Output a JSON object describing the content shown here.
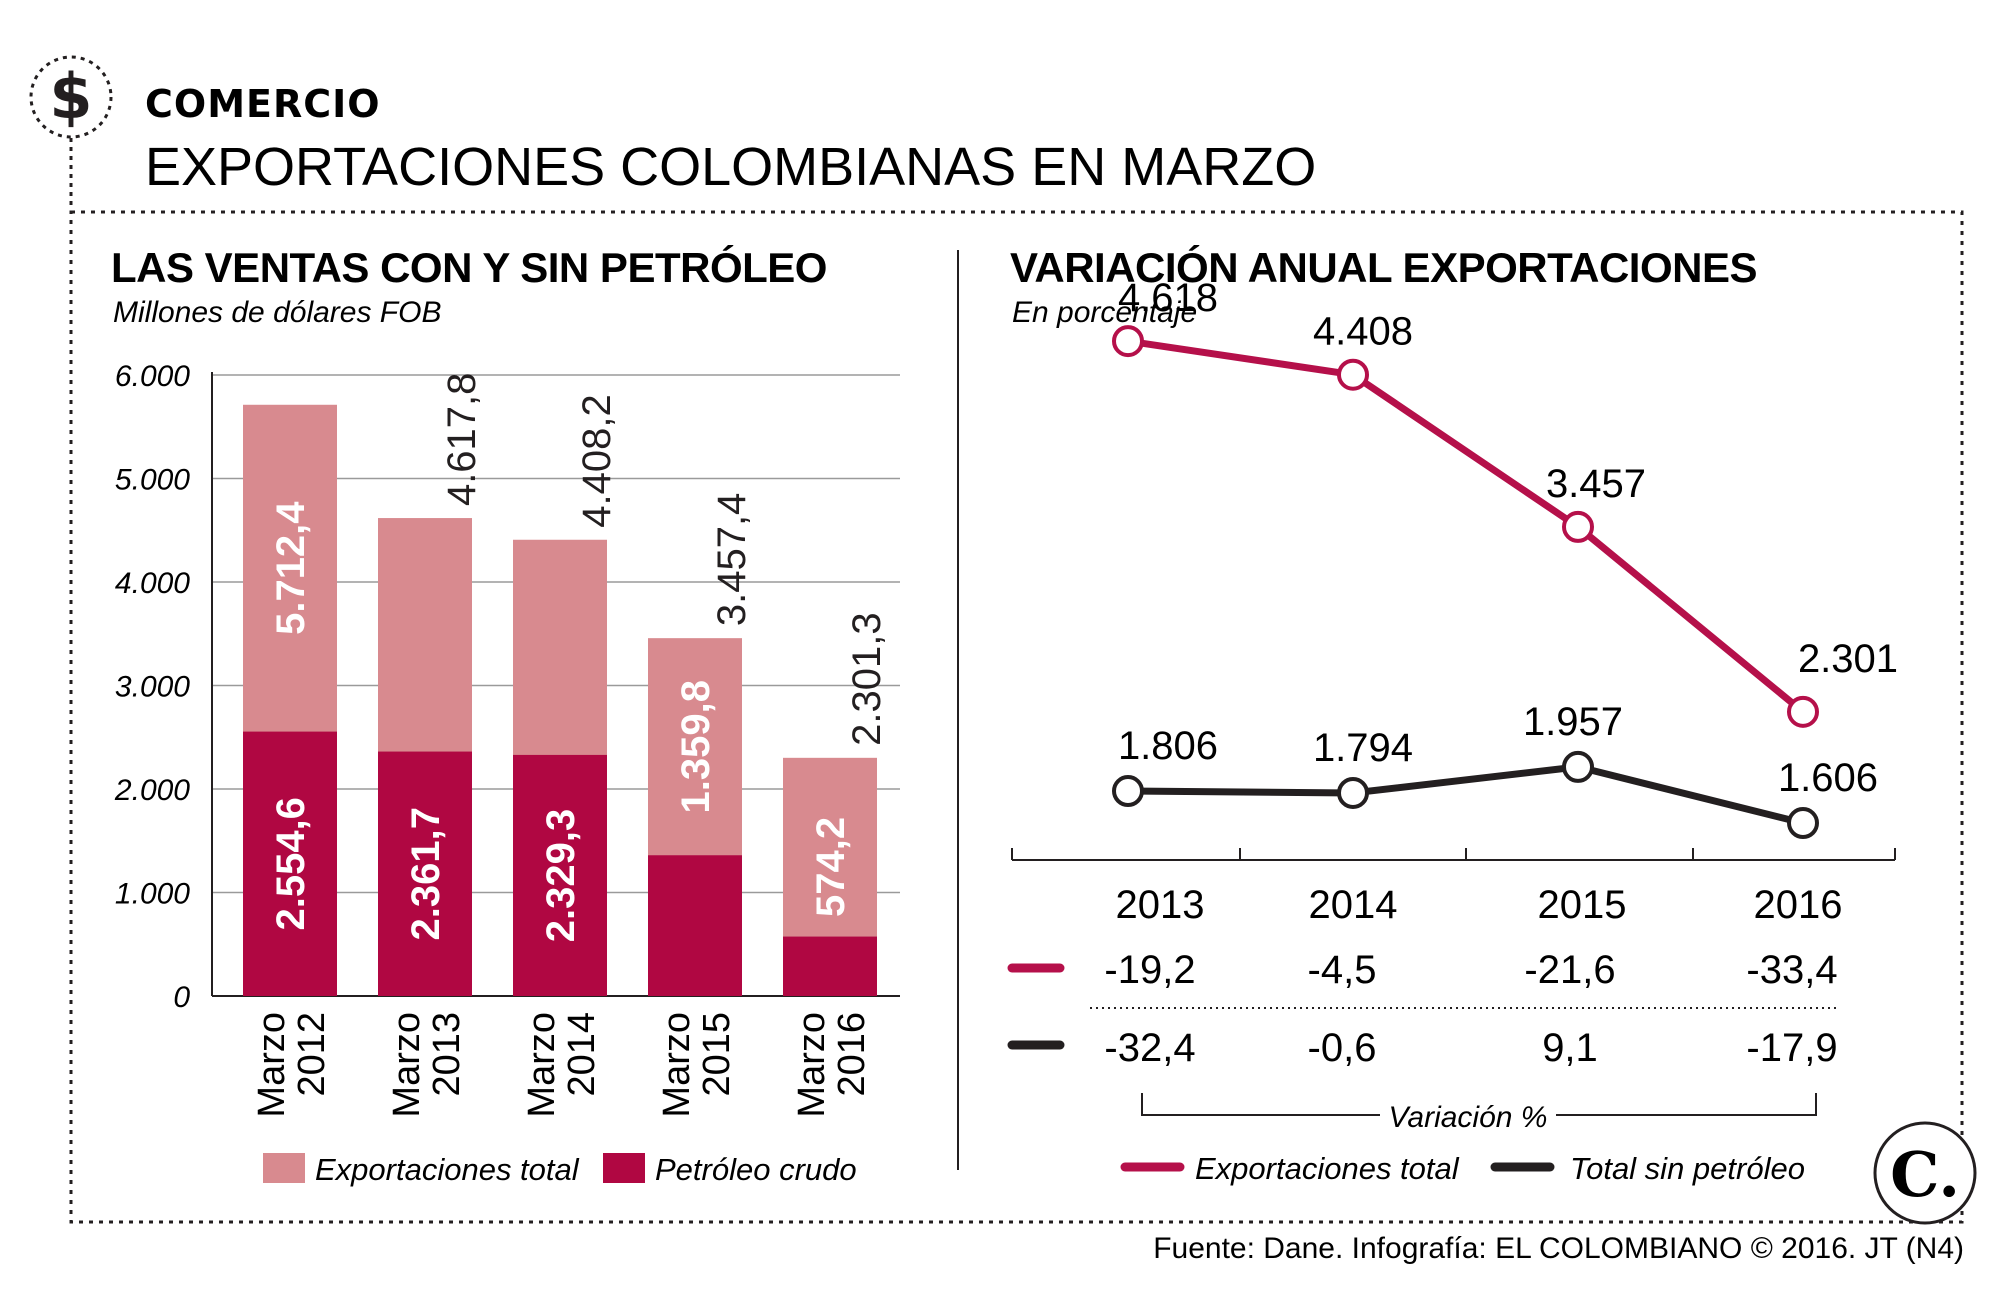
{
  "header": {
    "section": "COMERCIO",
    "title": "EXPORTACIONES COLOMBIANAS EN MARZO",
    "icon": "dollar-sign-icon"
  },
  "colors": {
    "light": "#d88a8f",
    "dark": "#b00742",
    "line_total": "#b5104a",
    "line_sin": "#231f20",
    "grid": "#9a9a9a"
  },
  "chart_data": [
    {
      "type": "bar",
      "title": "LAS VENTAS CON Y SIN PETRÓLEO",
      "subtitle": "Millones de dólares FOB",
      "categories": [
        [
          "Marzo",
          "2012"
        ],
        [
          "Marzo",
          "2013"
        ],
        [
          "Marzo",
          "2014"
        ],
        [
          "Marzo",
          "2015"
        ],
        [
          "Marzo",
          "2016"
        ]
      ],
      "series": [
        {
          "name": "Exportaciones total",
          "values": [
            5712.4,
            4617.8,
            4408.2,
            3457.4,
            2301.3
          ],
          "labels": [
            "5.712,4",
            "4.617,8",
            "4.408,2",
            "3.457,4",
            "2.301,3"
          ]
        },
        {
          "name": "Petróleo crudo",
          "values": [
            2554.6,
            2361.7,
            2329.3,
            1359.8,
            574.2
          ],
          "labels": [
            "2.554,6",
            "2.361,7",
            "2.329,3",
            "1.359,8",
            "574,2"
          ]
        }
      ],
      "ylim": [
        0,
        6000
      ],
      "yticks": [
        0,
        1000,
        2000,
        3000,
        4000,
        5000,
        6000
      ],
      "ytick_labels": [
        "0",
        "1.000",
        "2.000",
        "3.000",
        "4.000",
        "5.000",
        "6.000"
      ],
      "grid": true,
      "legend": "bottom"
    },
    {
      "type": "line",
      "title": "VARIACIÓN ANUAL EXPORTACIONES",
      "subtitle": "En porcentaje",
      "x": [
        "2013",
        "2014",
        "2015",
        "2016"
      ],
      "series": [
        {
          "name": "Exportaciones total",
          "values": [
            4618,
            4408,
            3457,
            2301
          ],
          "labels": [
            "4.618",
            "4.408",
            "3.457",
            "2.301"
          ],
          "variacion": [
            "-19,2",
            "-4,5",
            "-21,6",
            "-33,4"
          ]
        },
        {
          "name": "Total sin petróleo",
          "values": [
            1806,
            1794,
            1957,
            1606
          ],
          "labels": [
            "1.806",
            "1.794",
            "1.957",
            "1.606"
          ],
          "variacion": [
            "-32,4",
            "-0,6",
            "9,1",
            "-17,9"
          ]
        }
      ],
      "variacion_label": "Variación %",
      "grid": false,
      "legend": "bottom"
    }
  ],
  "footer": {
    "source": "Fuente: Dane. Infografía: EL COLOMBIANO © 2016. JT (N4)",
    "logo": "C."
  }
}
